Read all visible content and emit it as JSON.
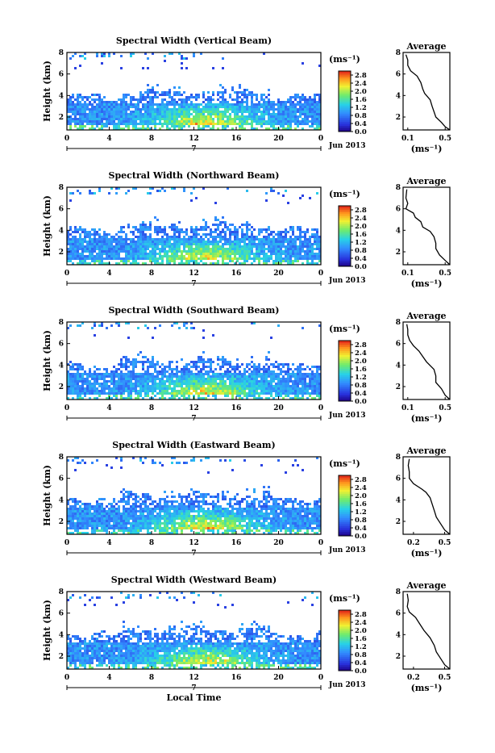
{
  "chart_data": [
    {
      "type": "heatmap",
      "title": "Spectral Width (Vertical Beam)",
      "ylabel": "Height (km)",
      "yticks": [
        "2",
        "4",
        "6",
        "8"
      ],
      "ylim": [
        0.8,
        8
      ],
      "xticks": [
        "0",
        "4",
        "8",
        "12",
        "16",
        "20",
        "0"
      ],
      "xlim": [
        0,
        24
      ],
      "date_tick": "7",
      "date_label": "Jun 2013",
      "colorbar": {
        "unit": "(ms⁻¹)",
        "ticks": [
          "0.0",
          "0.4",
          "0.8",
          "1.2",
          "1.6",
          "2.0",
          "2.4",
          "2.8"
        ],
        "range": [
          0,
          3.0
        ]
      },
      "profile": {
        "title": "Average",
        "xlabel": "(ms⁻¹)",
        "xticks": [
          "0.1",
          "0.5"
        ],
        "xlim": [
          0.05,
          0.55
        ],
        "yticks": [
          "2",
          "4",
          "6",
          "8"
        ],
        "ylim": [
          0.8,
          8
        ],
        "points": [
          [
            0.55,
            0.8
          ],
          [
            0.5,
            1.1
          ],
          [
            0.46,
            1.5
          ],
          [
            0.4,
            2.0
          ],
          [
            0.38,
            2.5
          ],
          [
            0.36,
            3.0
          ],
          [
            0.34,
            3.6
          ],
          [
            0.28,
            4.2
          ],
          [
            0.26,
            4.6
          ],
          [
            0.24,
            5.2
          ],
          [
            0.2,
            5.8
          ],
          [
            0.13,
            6.3
          ],
          [
            0.1,
            6.8
          ],
          [
            0.1,
            7.3
          ],
          [
            0.08,
            7.8
          ]
        ]
      },
      "cloud": {
        "core_top": 3.5,
        "base_top": 4.2,
        "edge_bottom": 1.4
      }
    },
    {
      "type": "heatmap",
      "title": "Spectral Width (Northward Beam)",
      "ylabel": "Height (km)",
      "yticks": [
        "2",
        "4",
        "6",
        "8"
      ],
      "ylim": [
        0.8,
        8
      ],
      "xticks": [
        "0",
        "4",
        "8",
        "12",
        "16",
        "20",
        "0"
      ],
      "xlim": [
        0,
        24
      ],
      "date_tick": "7",
      "date_label": "Jun 2013",
      "colorbar": {
        "unit": "(ms⁻¹)",
        "ticks": [
          "0.0",
          "0.4",
          "0.8",
          "1.2",
          "1.6",
          "2.0",
          "2.4",
          "2.8"
        ],
        "range": [
          0,
          3.0
        ]
      },
      "profile": {
        "title": "Average",
        "xlabel": "(ms⁻¹)",
        "xticks": [
          "0.1",
          "0.5"
        ],
        "xlim": [
          0.05,
          0.55
        ],
        "yticks": [
          "2",
          "4",
          "6",
          "8"
        ],
        "ylim": [
          0.8,
          8
        ],
        "points": [
          [
            0.55,
            0.8
          ],
          [
            0.5,
            1.2
          ],
          [
            0.44,
            1.7
          ],
          [
            0.4,
            2.3
          ],
          [
            0.4,
            2.8
          ],
          [
            0.38,
            3.4
          ],
          [
            0.34,
            3.9
          ],
          [
            0.26,
            4.3
          ],
          [
            0.24,
            4.8
          ],
          [
            0.18,
            5.2
          ],
          [
            0.16,
            5.6
          ],
          [
            0.08,
            6.0
          ],
          [
            0.1,
            6.5
          ],
          [
            0.08,
            7.0
          ],
          [
            0.09,
            7.8
          ]
        ]
      },
      "cloud": {
        "core_top": 3.4,
        "base_top": 4.4,
        "edge_bottom": 1.4
      }
    },
    {
      "type": "heatmap",
      "title": "Spectral Width (Southward Beam)",
      "ylabel": "Height (km)",
      "yticks": [
        "2",
        "4",
        "6",
        "8"
      ],
      "ylim": [
        0.8,
        8
      ],
      "xticks": [
        "0",
        "4",
        "8",
        "12",
        "16",
        "20",
        "0"
      ],
      "xlim": [
        0,
        24
      ],
      "date_tick": "7",
      "date_label": "Jun 2013",
      "colorbar": {
        "unit": "(ms⁻¹)",
        "ticks": [
          "0.0",
          "0.4",
          "0.8",
          "1.2",
          "1.6",
          "2.0",
          "2.4",
          "2.8"
        ],
        "range": [
          0,
          3.0
        ]
      },
      "profile": {
        "title": "Average",
        "xlabel": "(ms⁻¹)",
        "xticks": [
          "0.1",
          "0.5"
        ],
        "xlim": [
          0.05,
          0.55
        ],
        "yticks": [
          "2",
          "4",
          "6",
          "8"
        ],
        "ylim": [
          0.8,
          8
        ],
        "points": [
          [
            0.55,
            0.8
          ],
          [
            0.5,
            1.2
          ],
          [
            0.46,
            1.8
          ],
          [
            0.4,
            2.4
          ],
          [
            0.4,
            3.0
          ],
          [
            0.38,
            3.6
          ],
          [
            0.3,
            4.3
          ],
          [
            0.26,
            4.8
          ],
          [
            0.22,
            5.3
          ],
          [
            0.16,
            5.8
          ],
          [
            0.12,
            6.3
          ],
          [
            0.1,
            6.8
          ],
          [
            0.1,
            7.3
          ],
          [
            0.09,
            7.8
          ]
        ]
      },
      "cloud": {
        "core_top": 3.4,
        "base_top": 4.4,
        "edge_bottom": 1.4
      }
    },
    {
      "type": "heatmap",
      "title": "Spectral Width (Eastward Beam)",
      "ylabel": "Height (km)",
      "yticks": [
        "2",
        "4",
        "6",
        "8"
      ],
      "ylim": [
        0.8,
        8
      ],
      "xticks": [
        "0",
        "4",
        "8",
        "12",
        "16",
        "20",
        "0"
      ],
      "xlim": [
        0,
        24
      ],
      "date_tick": "7",
      "date_label": "Jun 2013",
      "colorbar": {
        "unit": "(ms⁻¹)",
        "ticks": [
          "0.0",
          "0.4",
          "0.8",
          "1.2",
          "1.6",
          "2.0",
          "2.4",
          "2.8"
        ],
        "range": [
          0,
          3.0
        ]
      },
      "profile": {
        "title": "Average",
        "xlabel": "(ms⁻¹)",
        "xticks": [
          "0.2",
          "0.5"
        ],
        "xlim": [
          0.1,
          0.55
        ],
        "yticks": [
          "2",
          "4",
          "6",
          "8"
        ],
        "ylim": [
          0.8,
          8
        ],
        "points": [
          [
            0.55,
            0.8
          ],
          [
            0.5,
            1.2
          ],
          [
            0.46,
            1.8
          ],
          [
            0.42,
            2.4
          ],
          [
            0.4,
            3.0
          ],
          [
            0.38,
            3.6
          ],
          [
            0.36,
            4.2
          ],
          [
            0.32,
            4.7
          ],
          [
            0.28,
            5.0
          ],
          [
            0.2,
            5.5
          ],
          [
            0.16,
            6.0
          ],
          [
            0.16,
            6.6
          ],
          [
            0.15,
            7.2
          ],
          [
            0.16,
            7.8
          ]
        ]
      },
      "cloud": {
        "core_top": 3.5,
        "base_top": 4.4,
        "edge_bottom": 1.4
      }
    },
    {
      "type": "heatmap",
      "title": "Spectral Width (Westward Beam)",
      "ylabel": "Height (km)",
      "yticks": [
        "2",
        "4",
        "6",
        "8"
      ],
      "ylim": [
        0.8,
        8
      ],
      "xticks": [
        "0",
        "4",
        "8",
        "12",
        "16",
        "20",
        "0"
      ],
      "xlim": [
        0,
        24
      ],
      "date_tick": "7",
      "date_label": "Jun 2013",
      "xlabel": "Local Time",
      "colorbar": {
        "unit": "(ms⁻¹)",
        "ticks": [
          "0.0",
          "0.4",
          "0.8",
          "1.2",
          "1.6",
          "2.0",
          "2.4",
          "2.8"
        ],
        "range": [
          0,
          3.0
        ]
      },
      "profile": {
        "title": "Average",
        "xlabel": "(ms⁻¹)",
        "xticks": [
          "0.2",
          "0.5"
        ],
        "xlim": [
          0.1,
          0.55
        ],
        "yticks": [
          "2",
          "4",
          "6",
          "8"
        ],
        "ylim": [
          0.8,
          8
        ],
        "points": [
          [
            0.55,
            0.8
          ],
          [
            0.5,
            1.2
          ],
          [
            0.46,
            1.8
          ],
          [
            0.42,
            2.4
          ],
          [
            0.4,
            3.0
          ],
          [
            0.36,
            3.7
          ],
          [
            0.3,
            4.4
          ],
          [
            0.26,
            5.0
          ],
          [
            0.22,
            5.6
          ],
          [
            0.16,
            6.1
          ],
          [
            0.14,
            6.6
          ],
          [
            0.15,
            7.2
          ],
          [
            0.14,
            7.8
          ]
        ]
      },
      "cloud": {
        "core_top": 3.4,
        "base_top": 4.4,
        "edge_bottom": 1.4
      }
    }
  ]
}
